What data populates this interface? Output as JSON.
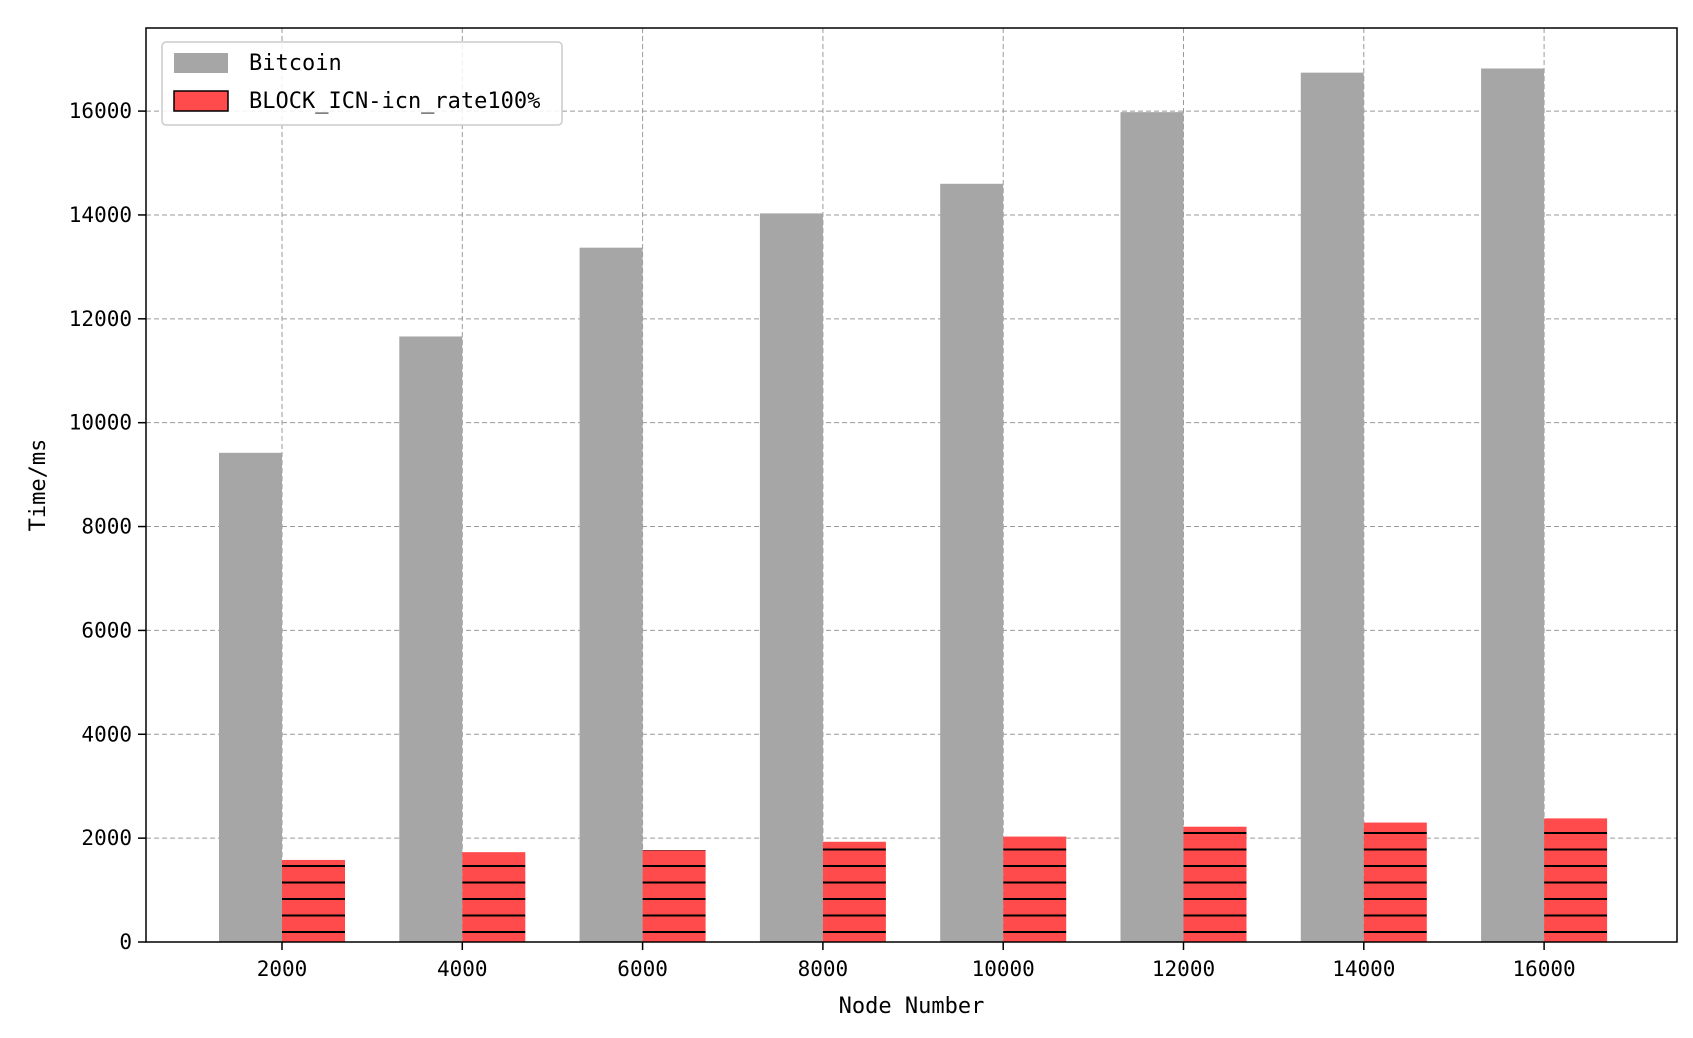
{
  "chart_data": {
    "type": "bar",
    "title": "",
    "xlabel": "Node Number",
    "ylabel": "Time/ms",
    "categories": [
      "2000",
      "4000",
      "6000",
      "8000",
      "10000",
      "12000",
      "14000",
      "16000"
    ],
    "series": [
      {
        "name": "Bitcoin",
        "color": "#a6a6a6",
        "hatch": "none",
        "values": [
          9420,
          11660,
          13370,
          14030,
          14600,
          15980,
          16740,
          16820
        ]
      },
      {
        "name": "BLOCK_ICN-icn_rate100%",
        "color": "#ff4b4b",
        "hatch": "horizontal",
        "values": [
          1580,
          1730,
          1770,
          1930,
          2030,
          2220,
          2300,
          2380
        ]
      }
    ],
    "yticks": [
      "0",
      "2000",
      "4000",
      "6000",
      "8000",
      "10000",
      "12000",
      "14000",
      "16000"
    ],
    "ylim": [
      0,
      17600
    ],
    "grid": true,
    "legend": "top-left"
  }
}
